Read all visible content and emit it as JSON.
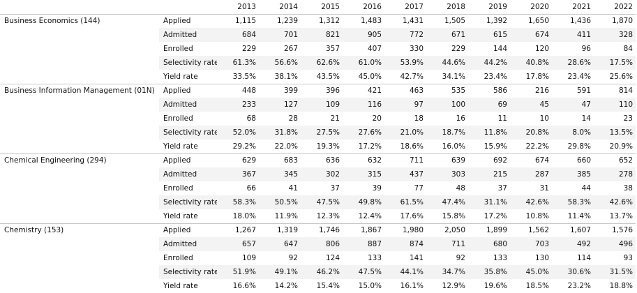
{
  "header": {
    "years": [
      "2013",
      "2014",
      "2015",
      "2016",
      "2017",
      "2018",
      "2019",
      "2020",
      "2021",
      "2022"
    ]
  },
  "groups": [
    {
      "name": "Business Economics (144)",
      "rows": [
        {
          "metric": "Applied",
          "values": [
            "1,115",
            "1,239",
            "1,312",
            "1,483",
            "1,431",
            "1,505",
            "1,392",
            "1,650",
            "1,436",
            "1,870"
          ]
        },
        {
          "metric": "Admitted",
          "values": [
            "684",
            "701",
            "821",
            "905",
            "772",
            "671",
            "615",
            "674",
            "411",
            "328"
          ]
        },
        {
          "metric": "Enrolled",
          "values": [
            "229",
            "267",
            "357",
            "407",
            "330",
            "229",
            "144",
            "120",
            "96",
            "84"
          ]
        },
        {
          "metric": "Selectivity rate",
          "values": [
            "61.3%",
            "56.6%",
            "62.6%",
            "61.0%",
            "53.9%",
            "44.6%",
            "44.2%",
            "40.8%",
            "28.6%",
            "17.5%"
          ]
        },
        {
          "metric": "Yield rate",
          "values": [
            "33.5%",
            "38.1%",
            "43.5%",
            "45.0%",
            "42.7%",
            "34.1%",
            "23.4%",
            "17.8%",
            "23.4%",
            "25.6%"
          ]
        }
      ]
    },
    {
      "name": "Business Information Management (01N)",
      "rows": [
        {
          "metric": "Applied",
          "values": [
            "448",
            "399",
            "396",
            "421",
            "463",
            "535",
            "586",
            "216",
            "591",
            "814"
          ]
        },
        {
          "metric": "Admitted",
          "values": [
            "233",
            "127",
            "109",
            "116",
            "97",
            "100",
            "69",
            "45",
            "47",
            "110"
          ]
        },
        {
          "metric": "Enrolled",
          "values": [
            "68",
            "28",
            "21",
            "20",
            "18",
            "16",
            "11",
            "10",
            "14",
            "23"
          ]
        },
        {
          "metric": "Selectivity rate",
          "values": [
            "52.0%",
            "31.8%",
            "27.5%",
            "27.6%",
            "21.0%",
            "18.7%",
            "11.8%",
            "20.8%",
            "8.0%",
            "13.5%"
          ]
        },
        {
          "metric": "Yield rate",
          "values": [
            "29.2%",
            "22.0%",
            "19.3%",
            "17.2%",
            "18.6%",
            "16.0%",
            "15.9%",
            "22.2%",
            "29.8%",
            "20.9%"
          ]
        }
      ]
    },
    {
      "name": "Chemical Engineering (294)",
      "rows": [
        {
          "metric": "Applied",
          "values": [
            "629",
            "683",
            "636",
            "632",
            "711",
            "639",
            "692",
            "674",
            "660",
            "652"
          ]
        },
        {
          "metric": "Admitted",
          "values": [
            "367",
            "345",
            "302",
            "315",
            "437",
            "303",
            "215",
            "287",
            "385",
            "278"
          ]
        },
        {
          "metric": "Enrolled",
          "values": [
            "66",
            "41",
            "37",
            "39",
            "77",
            "48",
            "37",
            "31",
            "44",
            "38"
          ]
        },
        {
          "metric": "Selectivity rate",
          "values": [
            "58.3%",
            "50.5%",
            "47.5%",
            "49.8%",
            "61.5%",
            "47.4%",
            "31.1%",
            "42.6%",
            "58.3%",
            "42.6%"
          ]
        },
        {
          "metric": "Yield rate",
          "values": [
            "18.0%",
            "11.9%",
            "12.3%",
            "12.4%",
            "17.6%",
            "15.8%",
            "17.2%",
            "10.8%",
            "11.4%",
            "13.7%"
          ]
        }
      ]
    },
    {
      "name": "Chemistry (153)",
      "rows": [
        {
          "metric": "Applied",
          "values": [
            "1,267",
            "1,319",
            "1,746",
            "1,867",
            "1,980",
            "2,050",
            "1,899",
            "1,562",
            "1,607",
            "1,576"
          ]
        },
        {
          "metric": "Admitted",
          "values": [
            "657",
            "647",
            "806",
            "887",
            "874",
            "711",
            "680",
            "703",
            "492",
            "496"
          ]
        },
        {
          "metric": "Enrolled",
          "values": [
            "109",
            "92",
            "124",
            "133",
            "141",
            "92",
            "133",
            "130",
            "114",
            "93"
          ]
        },
        {
          "metric": "Selectivity rate",
          "values": [
            "51.9%",
            "49.1%",
            "46.2%",
            "47.5%",
            "44.1%",
            "34.7%",
            "35.8%",
            "45.0%",
            "30.6%",
            "31.5%"
          ]
        },
        {
          "metric": "Yield rate",
          "values": [
            "16.6%",
            "14.2%",
            "15.4%",
            "15.0%",
            "16.1%",
            "12.9%",
            "19.6%",
            "18.5%",
            "23.2%",
            "18.8%"
          ]
        }
      ]
    }
  ]
}
